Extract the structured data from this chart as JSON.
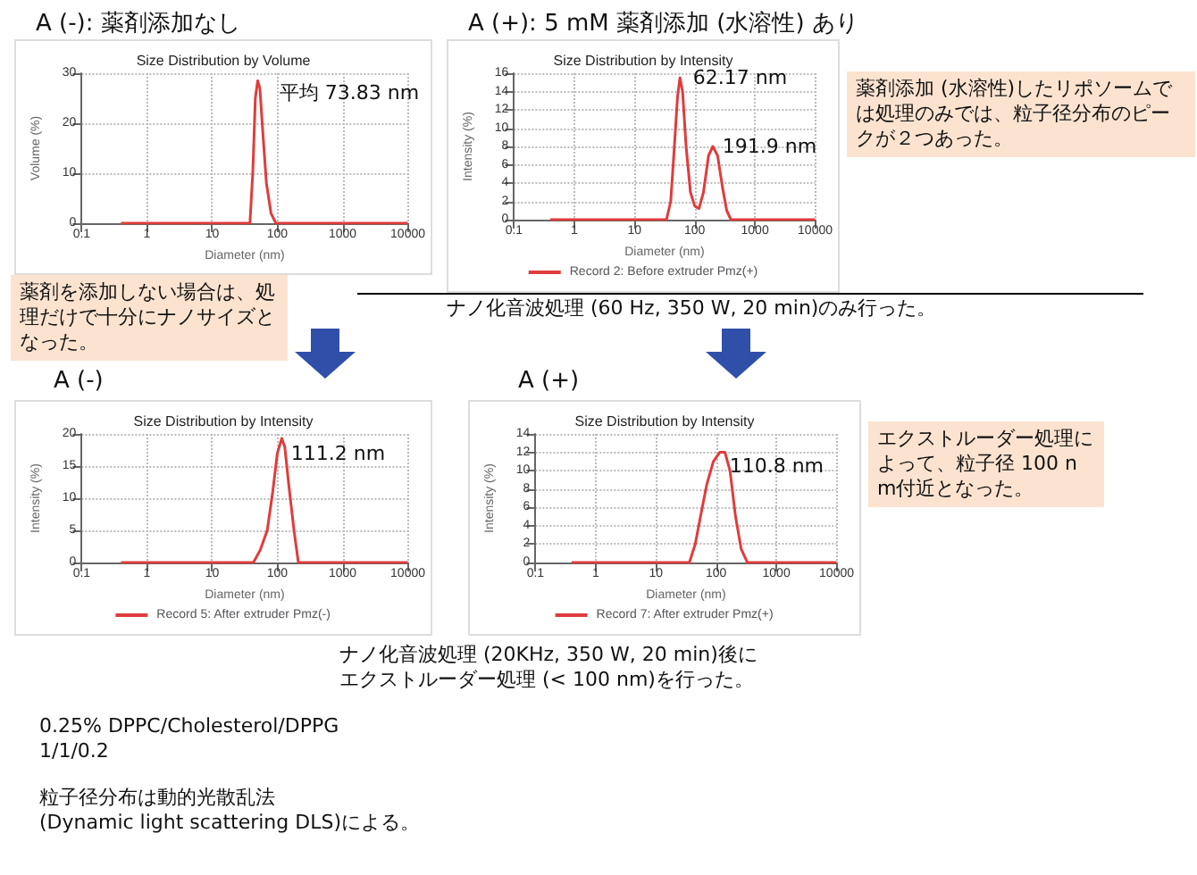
{
  "chart_data": [
    {
      "type": "line",
      "subtitle": "A (-): 薬剤添加なし",
      "title": "Size Distribution by Volume",
      "xlabel": "Diameter (nm)",
      "ylabel": "Volume (%)",
      "log": "x",
      "grid": true,
      "legend": false,
      "marker": "none",
      "line_style": "solid",
      "xlim": [
        0.1,
        10000
      ],
      "xticks": [
        0.1,
        1,
        10,
        100,
        1000,
        10000
      ],
      "ylim": [
        0,
        30
      ],
      "yticks": [
        0,
        10,
        20,
        30
      ],
      "series": [
        {
          "color": "#e03c3c",
          "x": [
            0.4,
            1,
            10,
            38,
            42,
            46,
            50,
            54,
            60,
            68,
            80,
            95,
            100,
            1000,
            10000
          ],
          "values": [
            0,
            0,
            0,
            0,
            10,
            25,
            28.5,
            27,
            18,
            8,
            2,
            0,
            0,
            0,
            0
          ]
        }
      ],
      "annotations": [
        {
          "text": "平均 73.83 nm",
          "x": 73.83,
          "y": 26
        },
        "薬剤を添加しない場合は、処理だけで十分にナノサイズとなった。"
      ]
    },
    {
      "type": "line",
      "subtitle": "A (+):  5 mM 薬剤添加 (水溶性) あり",
      "title": "Size Distribution by Intensity",
      "xlabel": "Diameter (nm)",
      "ylabel": "Intensity (%)",
      "log": "x",
      "grid": true,
      "legend": "bottom",
      "marker": "none",
      "line_style": "solid",
      "xlim": [
        0.1,
        10000
      ],
      "xticks": [
        0.1,
        1,
        10,
        100,
        1000,
        10000
      ],
      "ylim": [
        0,
        16
      ],
      "yticks": [
        0,
        2,
        4,
        6,
        8,
        10,
        12,
        14,
        16
      ],
      "series": [
        {
          "name": "Record 2: Before extruder Pmz(+)",
          "color": "#e03c3c",
          "x": [
            0.4,
            1,
            10,
            34,
            40,
            45,
            52,
            57,
            63,
            72,
            85,
            100,
            118,
            140,
            170,
            200,
            240,
            290,
            340,
            400,
            1000,
            10000
          ],
          "values": [
            0,
            0,
            0,
            0,
            2,
            7,
            13.5,
            15.5,
            14,
            8,
            3,
            1.5,
            1.2,
            3,
            7,
            8,
            7,
            3.5,
            1,
            0,
            0,
            0
          ]
        }
      ],
      "annotations": [
        {
          "text": "62.17 nm",
          "x": 62.17,
          "y": 15.5
        },
        {
          "text": "191.9 nm",
          "x": 191.9,
          "y": 8
        },
        "薬剤添加 (水溶性)したリポソームでは処理のみでは、粒子径分布のピークが２つあった。",
        "ナノ化音波処理 (60 Hz, 350 W, 20 min)のみ行った。"
      ]
    },
    {
      "type": "line",
      "subtitle": "A (-)",
      "title": "Size Distribution by Intensity",
      "xlabel": "Diameter (nm)",
      "ylabel": "Intensity (%)",
      "log": "x",
      "grid": true,
      "legend": "bottom",
      "marker": "none",
      "line_style": "solid",
      "xlim": [
        0.1,
        10000
      ],
      "xticks": [
        0.1,
        1,
        10,
        100,
        1000,
        10000
      ],
      "ylim": [
        0,
        20
      ],
      "yticks": [
        0,
        5,
        10,
        15,
        20
      ],
      "series": [
        {
          "name": "Record 5: After extruder Pmz(-)",
          "color": "#e03c3c",
          "x": [
            0.4,
            1,
            10,
            43,
            55,
            70,
            85,
            100,
            117,
            130,
            150,
            180,
            210,
            1000,
            10000
          ],
          "values": [
            0,
            0,
            0,
            0,
            2,
            5,
            11,
            17,
            19.3,
            18,
            12,
            5,
            0,
            0,
            0
          ]
        }
      ],
      "annotations": [
        {
          "text": "111.2 nm",
          "x": 111.2,
          "y": 17
        },
        "ナノ化音波処理 (20KHz, 350 W, 20 min)後にエクストルーダー処理 (< 100 nm)を行った。",
        "0.25% DPPC/Cholesterol/DPPG\n1/1/0.2",
        "粒子径分布は動的光散乱法\n(Dynamic light scattering DLS)による。"
      ]
    },
    {
      "type": "line",
      "subtitle": "A (+)",
      "title": "Size Distribution by Intensity",
      "xlabel": "Diameter (nm)",
      "ylabel": "Intensity (%)",
      "log": "x",
      "grid": true,
      "legend": "bottom",
      "marker": "none",
      "line_style": "solid",
      "xlim": [
        0.1,
        10000
      ],
      "xticks": [
        0.1,
        1,
        10,
        100,
        1000,
        10000
      ],
      "ylim": [
        0,
        14
      ],
      "yticks": [
        0,
        2,
        4,
        6,
        8,
        10,
        12,
        14
      ],
      "series": [
        {
          "name": "Record 7: After extruder Pmz(+)",
          "color": "#e03c3c",
          "x": [
            0.4,
            1,
            10,
            36,
            45,
            55,
            70,
            90,
            115,
            140,
            170,
            210,
            260,
            330,
            1000,
            10000
          ],
          "values": [
            0,
            0,
            0,
            0,
            2,
            5,
            8.5,
            11,
            12,
            12,
            10,
            5,
            1.5,
            0,
            0,
            0
          ]
        }
      ],
      "annotations": [
        {
          "text": "110.8 nm",
          "x": 110.8,
          "y": 10.5
        },
        "エクストルーダー処理によって、粒子径 100 nm付近となった。"
      ]
    }
  ]
}
